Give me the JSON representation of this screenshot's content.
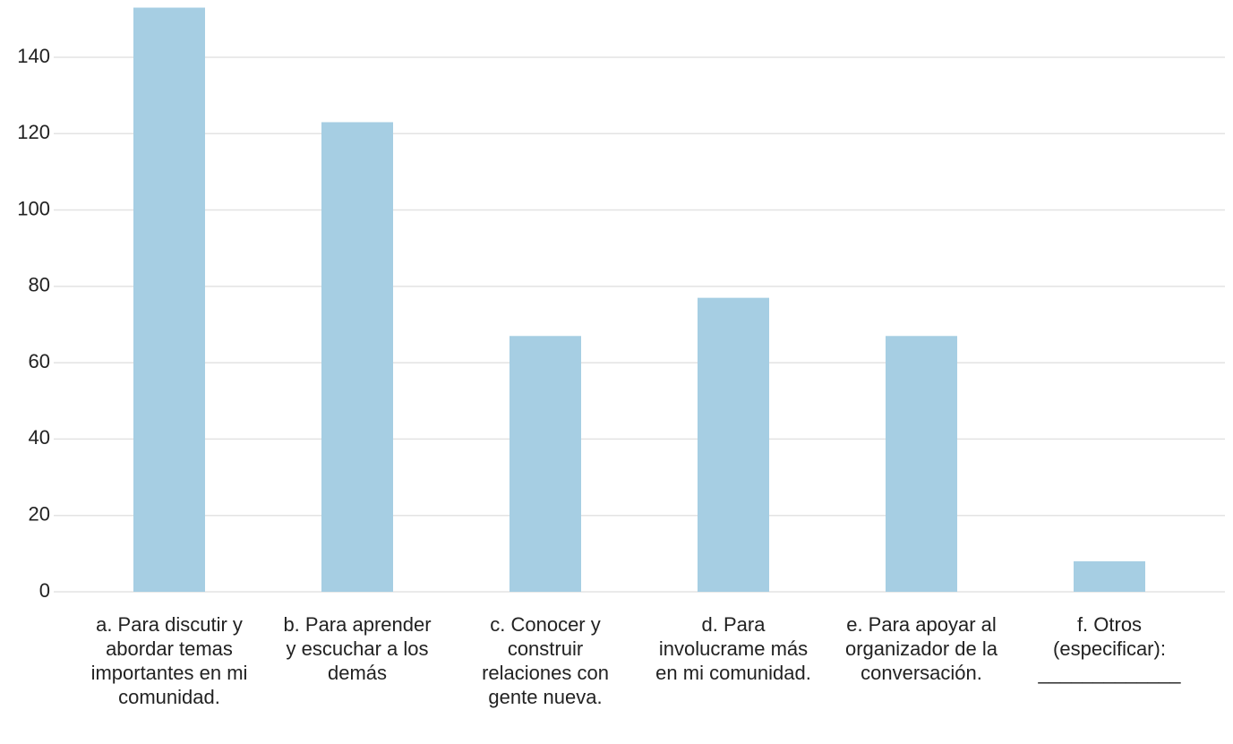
{
  "chart_data": {
    "type": "bar",
    "categories": [
      "a. Para discutir y abordar temas importantes en mi comunidad.",
      "b. Para aprender y escuchar a los demás",
      "c. Conocer y construir relaciones con gente nueva.",
      "d. Para involucrame más en mi comunidad.",
      "e. Para apoyar al organizador de la conversación.",
      "f. Otros (especificar): _____________"
    ],
    "values": [
      153,
      123,
      67,
      77,
      67,
      8
    ],
    "color": "#a6cee3",
    "ylim": [
      0,
      155
    ],
    "yticks": [
      0,
      20,
      40,
      60,
      80,
      100,
      120,
      140
    ],
    "grid": true
  }
}
